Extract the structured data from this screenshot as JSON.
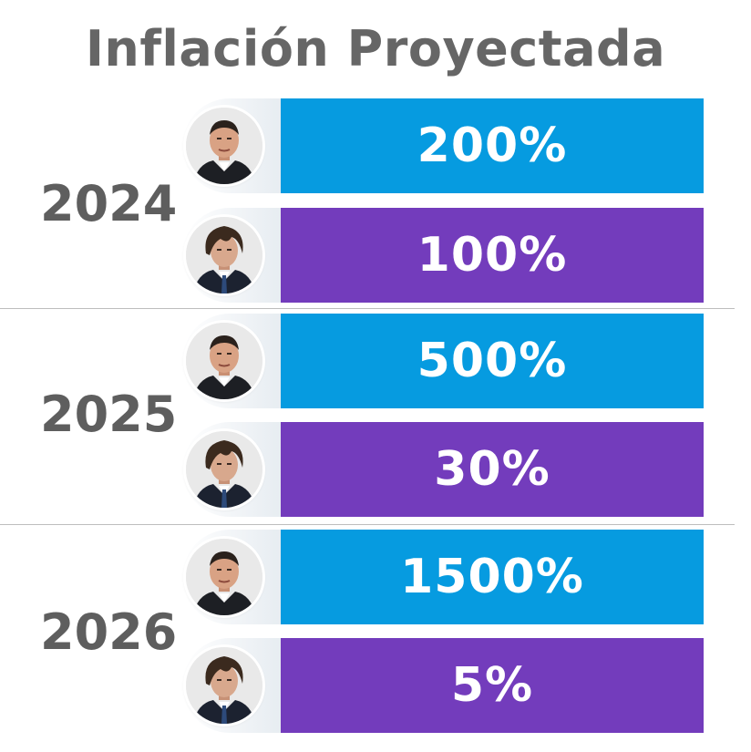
{
  "colors": {
    "massa": "#069be0",
    "milei": "#733cbc",
    "title": "#666666",
    "year": "#5e5e5e"
  },
  "chart_data": {
    "type": "bar",
    "title": "Inflación Proyectada",
    "categories": [
      "2024",
      "2025",
      "2026"
    ],
    "series": [
      {
        "avatar": "massa-portrait",
        "color": "#069be0",
        "values": [
          200,
          500,
          1500
        ],
        "labels": [
          "200%",
          "500%",
          "1500%"
        ]
      },
      {
        "avatar": "milei-portrait",
        "color": "#733cbc",
        "values": [
          100,
          30,
          5
        ],
        "labels": [
          "100%",
          "30%",
          "5%"
        ]
      }
    ]
  }
}
